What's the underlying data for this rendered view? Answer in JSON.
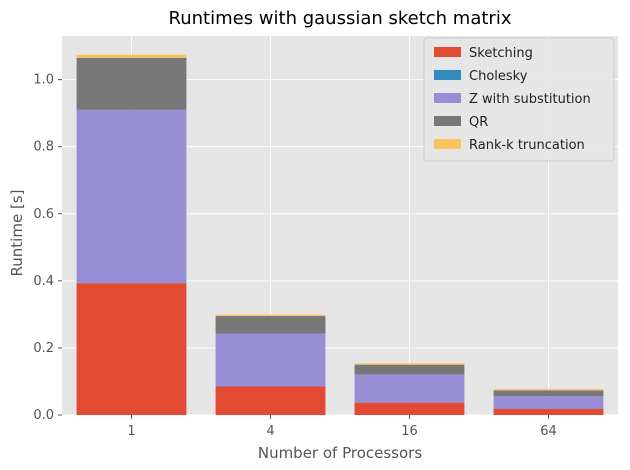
{
  "chart_data": {
    "type": "bar",
    "stacked": true,
    "title": "Runtimes with gaussian sketch matrix",
    "xlabel": "Number of Processors",
    "ylabel": "Runtime [s]",
    "categories": [
      "1",
      "4",
      "16",
      "64"
    ],
    "ylim": [
      0,
      1.13
    ],
    "yticks": [
      "0.0",
      "0.2",
      "0.4",
      "0.6",
      "0.8",
      "1.0"
    ],
    "grid": true,
    "legend_position": "top-right",
    "series": [
      {
        "name": "Sketching",
        "color": "#E24A33",
        "values": [
          0.393,
          0.085,
          0.037,
          0.018
        ]
      },
      {
        "name": "Cholesky",
        "color": "#348ABD",
        "values": [
          0.001,
          0.001,
          0.001,
          0.001
        ]
      },
      {
        "name": "Z with substitution",
        "color": "#988ED5",
        "values": [
          0.516,
          0.157,
          0.083,
          0.037
        ]
      },
      {
        "name": "QR",
        "color": "#777777",
        "values": [
          0.155,
          0.052,
          0.029,
          0.017
        ]
      },
      {
        "name": "Rank-k truncation",
        "color": "#FBC15E",
        "values": [
          0.009,
          0.004,
          0.004,
          0.004
        ]
      }
    ]
  }
}
